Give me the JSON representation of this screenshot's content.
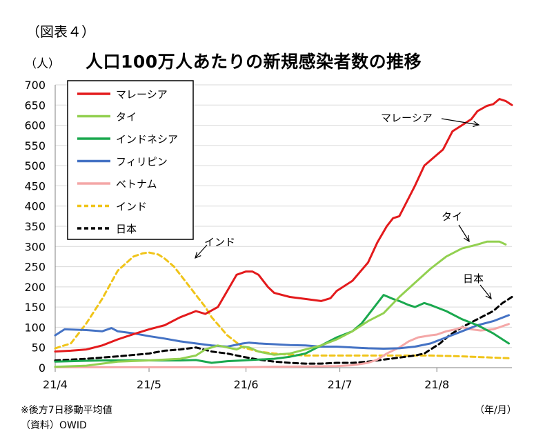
{
  "header": {
    "figure_label": "（図表４）",
    "unit_label": "（人）",
    "title": "人口100万人あたりの新規感染者数の推移"
  },
  "footer": {
    "note": "※後方7日移動平均値",
    "source": "（資料）OWID",
    "x_unit": "（年/月）"
  },
  "chart_data": {
    "type": "line",
    "title": "人口100万人あたりの新規感染者数の推移",
    "ylabel": "（人）",
    "xlabel": "（年/月）",
    "ylim": [
      0,
      700
    ],
    "y_ticks": [
      0,
      50,
      100,
      150,
      200,
      250,
      300,
      350,
      400,
      450,
      500,
      550,
      600,
      650,
      700
    ],
    "x_ticks": [
      "21/4",
      "21/5",
      "21/6",
      "21/7",
      "21/8"
    ],
    "x_tick_days": [
      0,
      30,
      61,
      91,
      122
    ],
    "x_unit": "days since 2021-04-01",
    "x_max": 146,
    "grid": true,
    "legend_position": "top-left",
    "series": [
      {
        "name": "マレーシア",
        "color": "#e31a1c",
        "dash": false,
        "x": [
          0,
          5,
          10,
          15,
          20,
          25,
          30,
          35,
          40,
          45,
          48,
          52,
          55,
          58,
          61,
          63,
          65,
          68,
          70,
          75,
          80,
          85,
          88,
          90,
          95,
          100,
          103,
          106,
          108,
          110,
          113,
          115,
          118,
          121,
          124,
          127,
          130,
          133,
          135,
          138,
          140,
          142,
          144,
          146
        ],
        "y": [
          40,
          42,
          45,
          55,
          70,
          83,
          95,
          105,
          125,
          140,
          133,
          150,
          190,
          230,
          238,
          238,
          230,
          200,
          185,
          175,
          170,
          165,
          172,
          190,
          215,
          260,
          310,
          350,
          370,
          375,
          420,
          450,
          500,
          520,
          540,
          585,
          600,
          615,
          635,
          648,
          652,
          665,
          660,
          650
        ]
      },
      {
        "name": "タイ",
        "color": "#92d050",
        "dash": false,
        "x": [
          0,
          10,
          20,
          30,
          40,
          45,
          48,
          50,
          52,
          55,
          58,
          60,
          62,
          65,
          68,
          70,
          75,
          80,
          85,
          90,
          95,
          100,
          105,
          110,
          115,
          120,
          125,
          130,
          135,
          138,
          142,
          144
        ],
        "y": [
          2,
          5,
          15,
          18,
          22,
          30,
          45,
          50,
          55,
          50,
          45,
          52,
          50,
          40,
          35,
          32,
          35,
          45,
          55,
          70,
          90,
          115,
          135,
          175,
          210,
          245,
          275,
          295,
          305,
          312,
          312,
          305
        ]
      },
      {
        "name": "インドネシア",
        "color": "#1aa84e",
        "dash": false,
        "x": [
          0,
          5,
          10,
          15,
          20,
          30,
          40,
          45,
          50,
          55,
          60,
          65,
          70,
          75,
          80,
          85,
          90,
          95,
          98,
          100,
          103,
          105,
          108,
          110,
          113,
          115,
          118,
          120,
          125,
          130,
          135,
          140,
          145
        ],
        "y": [
          15,
          16,
          17,
          18,
          18,
          18,
          18,
          19,
          12,
          16,
          18,
          20,
          22,
          27,
          35,
          55,
          75,
          90,
          110,
          130,
          160,
          180,
          170,
          165,
          155,
          150,
          160,
          155,
          140,
          120,
          105,
          85,
          60
        ]
      },
      {
        "name": "フィリピン",
        "color": "#4472c4",
        "dash": false,
        "x": [
          0,
          3,
          10,
          15,
          18,
          20,
          25,
          30,
          35,
          40,
          45,
          50,
          55,
          60,
          62,
          65,
          70,
          75,
          80,
          85,
          90,
          95,
          100,
          105,
          110,
          115,
          120,
          125,
          130,
          135,
          140,
          145
        ],
        "y": [
          80,
          95,
          93,
          90,
          98,
          90,
          85,
          78,
          72,
          65,
          60,
          55,
          52,
          60,
          62,
          60,
          58,
          56,
          55,
          52,
          52,
          50,
          48,
          47,
          48,
          52,
          60,
          75,
          90,
          105,
          115,
          130
        ]
      },
      {
        "name": "ベトナム",
        "color": "#f4a7a7",
        "dash": false,
        "x": [
          0,
          60,
          70,
          80,
          90,
          95,
          100,
          103,
          106,
          110,
          113,
          116,
          120,
          122,
          125,
          128,
          130,
          133,
          136,
          140,
          142,
          145
        ],
        "y": [
          1,
          1,
          2,
          3,
          4,
          6,
          12,
          20,
          35,
          50,
          65,
          75,
          80,
          82,
          90,
          95,
          100,
          95,
          92,
          95,
          100,
          108
        ]
      },
      {
        "name": "インド",
        "color": "#f0c419",
        "dash": true,
        "x": [
          0,
          5,
          10,
          15,
          20,
          25,
          28,
          30,
          33,
          35,
          38,
          40,
          43,
          45,
          48,
          50,
          55,
          60,
          65,
          70,
          75,
          80,
          90,
          100,
          110,
          120,
          130,
          140,
          146
        ],
        "y": [
          48,
          60,
          110,
          170,
          240,
          275,
          283,
          285,
          280,
          270,
          250,
          230,
          200,
          180,
          150,
          125,
          80,
          50,
          40,
          35,
          32,
          30,
          30,
          30,
          30,
          30,
          28,
          25,
          23
        ]
      },
      {
        "name": "日本",
        "color": "#000000",
        "dash": true,
        "x": [
          0,
          10,
          20,
          30,
          35,
          40,
          45,
          50,
          55,
          60,
          65,
          70,
          75,
          80,
          85,
          90,
          95,
          100,
          105,
          110,
          115,
          118,
          120,
          123,
          126,
          130,
          135,
          140,
          143,
          146
        ],
        "y": [
          18,
          22,
          28,
          35,
          42,
          45,
          50,
          40,
          35,
          27,
          20,
          15,
          12,
          10,
          10,
          12,
          12,
          15,
          20,
          25,
          30,
          35,
          45,
          60,
          80,
          100,
          120,
          140,
          160,
          175
        ]
      }
    ],
    "annotations": [
      {
        "text": "マレーシア"
      },
      {
        "text": "タイ"
      },
      {
        "text": "インド"
      },
      {
        "text": "日本"
      }
    ]
  }
}
